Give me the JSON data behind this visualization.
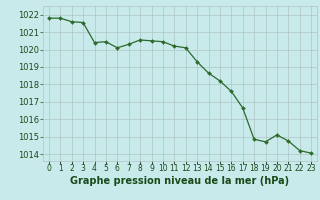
{
  "x": [
    0,
    1,
    2,
    3,
    4,
    5,
    6,
    7,
    8,
    9,
    10,
    11,
    12,
    13,
    14,
    15,
    16,
    17,
    18,
    19,
    20,
    21,
    22,
    23
  ],
  "y": [
    1021.8,
    1021.8,
    1021.6,
    1021.55,
    1020.4,
    1020.45,
    1020.1,
    1020.3,
    1020.55,
    1020.5,
    1020.45,
    1020.2,
    1020.1,
    1019.3,
    1018.65,
    1018.2,
    1017.6,
    1016.65,
    1014.85,
    1014.7,
    1015.1,
    1014.75,
    1014.2,
    1014.05
  ],
  "line_color": "#2d6a2d",
  "marker": "D",
  "marker_size": 2.0,
  "bg_color": "#c8eaea",
  "grid_color": "#b0c4c4",
  "xlabel": "Graphe pression niveau de la mer (hPa)",
  "xlabel_fontsize": 7,
  "xlabel_color": "#1a4a1a",
  "ylabel_ticks": [
    1014,
    1015,
    1016,
    1017,
    1018,
    1019,
    1020,
    1021,
    1022
  ],
  "ylim": [
    1013.6,
    1022.5
  ],
  "xlim": [
    -0.5,
    23.5
  ],
  "ytick_fontsize": 6,
  "xtick_fontsize": 5.5,
  "tick_color": "#1a4a1a"
}
